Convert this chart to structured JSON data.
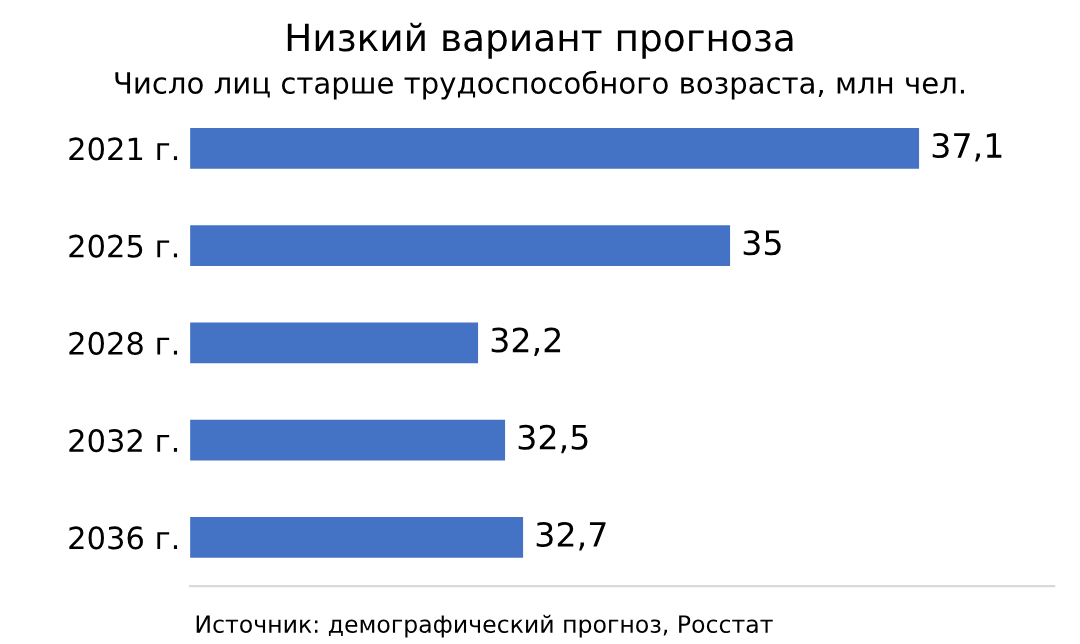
{
  "chart_data": {
    "type": "bar",
    "orientation": "horizontal",
    "title": "Низкий вариант прогноза",
    "subtitle": "Число лиц старше трудоспособного возраста, млн чел.",
    "categories": [
      "2021 г.",
      "2025 г.",
      "2028 г.",
      "2032 г.",
      "2036 г."
    ],
    "values": [
      37.1,
      35,
      32.2,
      32.5,
      32.7
    ],
    "value_labels": [
      "37,1",
      "35",
      "32,2",
      "32,5",
      "32,7"
    ],
    "color": "#4472c4",
    "xlim": [
      29,
      38.6
    ],
    "tick_labels": "y",
    "grid": false,
    "legend": false,
    "annotations": [
      "Источник: демографический прогноз, Росстат"
    ]
  }
}
